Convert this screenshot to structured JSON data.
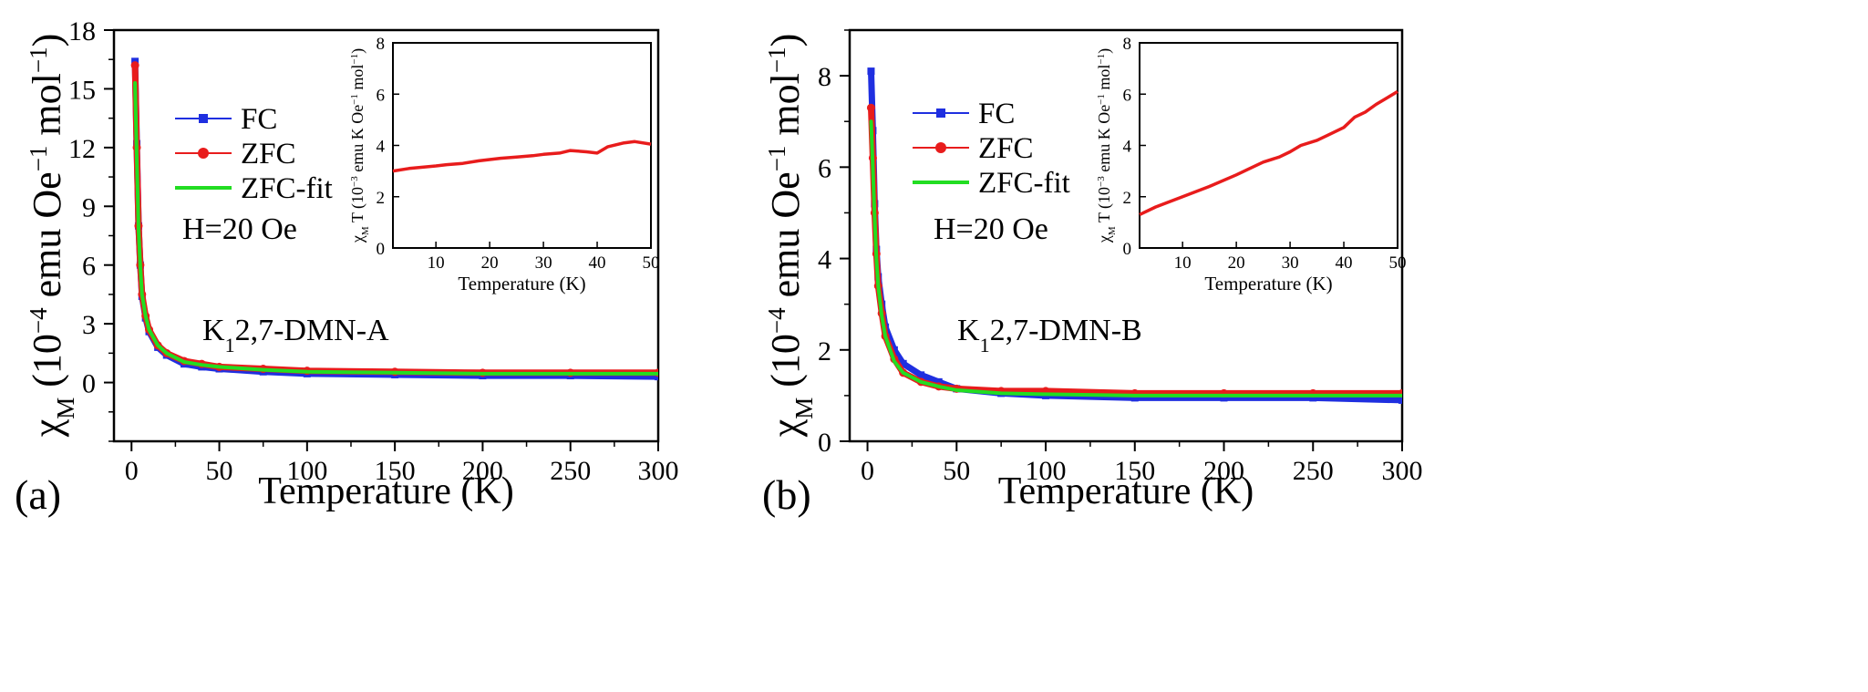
{
  "figure": {
    "panels": [
      "(a)",
      "(b)"
    ]
  },
  "chart_data": [
    {
      "panel_label": "(a)",
      "type": "line",
      "title": "",
      "xlabel": "Temperature (K)",
      "ylabel": "χ_M (10^-4 emu Oe^-1 mol^-1)",
      "ylabel_parts": {
        "chi": "χ",
        "sub": "M",
        "a": "(10",
        "exp1": "−4",
        "b": " emu Oe",
        "exp2": "−1",
        "c": " mol",
        "exp3": "−1",
        "d": ")"
      },
      "xlim": [
        -10,
        300
      ],
      "ylim": [
        -3,
        18
      ],
      "xticks": [
        0,
        50,
        100,
        150,
        200,
        250,
        300
      ],
      "yticks": [
        0,
        3,
        6,
        9,
        12,
        15,
        18
      ],
      "legend": {
        "position": "upper-left",
        "entries": [
          "FC",
          "ZFC",
          "ZFC-fit"
        ]
      },
      "annotations": {
        "field": "H=20 Oe",
        "sample_prefix": "K",
        "sample_sub": "1",
        "sample_suffix": "2,7-DMN-A"
      },
      "series": [
        {
          "name": "FC",
          "color": "#1f2fe0",
          "marker": "square",
          "x": [
            2,
            3,
            4,
            5,
            6,
            8,
            10,
            15,
            20,
            30,
            40,
            50,
            75,
            100,
            150,
            200,
            250,
            300
          ],
          "y": [
            16.4,
            12.2,
            8.0,
            6.0,
            4.4,
            3.3,
            2.6,
            1.8,
            1.4,
            0.95,
            0.8,
            0.7,
            0.55,
            0.45,
            0.4,
            0.35,
            0.35,
            0.3
          ]
        },
        {
          "name": "ZFC",
          "color": "#e81c1c",
          "marker": "circle",
          "x": [
            2,
            3,
            4,
            5,
            6,
            8,
            10,
            15,
            20,
            30,
            40,
            50,
            75,
            100,
            150,
            200,
            250,
            300
          ],
          "y": [
            16.2,
            12.0,
            8.0,
            6.0,
            4.5,
            3.4,
            2.7,
            1.9,
            1.5,
            1.1,
            0.95,
            0.8,
            0.7,
            0.6,
            0.55,
            0.5,
            0.5,
            0.5
          ]
        },
        {
          "name": "ZFC-fit",
          "color": "#22dd22",
          "marker": "none",
          "x": [
            2,
            3,
            4,
            5,
            6,
            8,
            10,
            15,
            20,
            30,
            40,
            50,
            75,
            100,
            150,
            200,
            250,
            300
          ],
          "y": [
            15.3,
            11.5,
            7.8,
            5.9,
            4.5,
            3.4,
            2.7,
            1.9,
            1.5,
            1.05,
            0.9,
            0.8,
            0.65,
            0.55,
            0.5,
            0.45,
            0.45,
            0.45
          ]
        }
      ],
      "inset": {
        "xlabel": "Temperature (K)",
        "ylabel": "χ_M T (10^-3 emu K Oe^-1 mol^-1)",
        "ylabel_parts": {
          "chi": "χ",
          "sub": "M",
          "a": "T (10",
          "exp1": "−3",
          "b": " emu K Oe",
          "exp2": "−1",
          "c": " mol",
          "exp3": "−1",
          "d": ")"
        },
        "xlim": [
          2,
          50
        ],
        "ylim": [
          0,
          8
        ],
        "xticks": [
          10,
          20,
          30,
          40,
          50
        ],
        "yticks": [
          0,
          2,
          4,
          6,
          8
        ],
        "series": [
          {
            "name": "",
            "color": "#e81c1c",
            "x": [
              2,
              5,
              10,
              12,
              15,
              18,
              20,
              22,
              25,
              28,
              30,
              33,
              35,
              38,
              40,
              42,
              45,
              47,
              50
            ],
            "y": [
              3.0,
              3.1,
              3.2,
              3.25,
              3.3,
              3.4,
              3.45,
              3.5,
              3.55,
              3.6,
              3.65,
              3.7,
              3.8,
              3.75,
              3.7,
              3.95,
              4.1,
              4.15,
              4.05
            ]
          }
        ]
      }
    },
    {
      "panel_label": "(b)",
      "type": "line",
      "title": "",
      "xlabel": "Temperature (K)",
      "ylabel": "χ_M (10^-4 emu Oe^-1 mol^-1)",
      "ylabel_parts": {
        "chi": "χ",
        "sub": "M",
        "a": "(10",
        "exp1": "−4",
        "b": " emu Oe",
        "exp2": "−1",
        "c": " mol",
        "exp3": "−1",
        "d": ")"
      },
      "xlim": [
        -10,
        300
      ],
      "ylim": [
        0,
        9
      ],
      "xticks": [
        0,
        50,
        100,
        150,
        200,
        250,
        300
      ],
      "yticks": [
        0,
        2,
        4,
        6,
        8
      ],
      "legend": {
        "position": "upper-left",
        "entries": [
          "FC",
          "ZFC",
          "ZFC-fit"
        ]
      },
      "annotations": {
        "field": "H=20 Oe",
        "sample_prefix": "K",
        "sample_sub": "1",
        "sample_suffix": "2,7-DMN-B"
      },
      "series": [
        {
          "name": "FC",
          "color": "#1f2fe0",
          "marker": "square",
          "x": [
            2,
            3,
            4,
            5,
            6,
            8,
            10,
            15,
            20,
            30,
            40,
            50,
            75,
            100,
            150,
            200,
            250,
            300
          ],
          "y": [
            8.1,
            6.8,
            5.2,
            4.2,
            3.6,
            3.0,
            2.5,
            2.0,
            1.7,
            1.45,
            1.3,
            1.15,
            1.05,
            1.0,
            0.95,
            0.95,
            0.95,
            0.9
          ]
        },
        {
          "name": "ZFC",
          "color": "#e81c1c",
          "marker": "circle",
          "x": [
            2,
            3,
            4,
            5,
            6,
            8,
            10,
            15,
            20,
            30,
            40,
            50,
            75,
            100,
            150,
            200,
            250,
            300
          ],
          "y": [
            7.3,
            6.2,
            5.0,
            4.1,
            3.4,
            2.8,
            2.3,
            1.8,
            1.5,
            1.3,
            1.2,
            1.15,
            1.1,
            1.1,
            1.05,
            1.05,
            1.05,
            1.05
          ]
        },
        {
          "name": "ZFC-fit",
          "color": "#22dd22",
          "marker": "none",
          "x": [
            2,
            3,
            4,
            5,
            6,
            8,
            10,
            15,
            20,
            30,
            40,
            50,
            75,
            100,
            150,
            200,
            250,
            300
          ],
          "y": [
            7.0,
            6.0,
            4.9,
            4.0,
            3.4,
            2.75,
            2.3,
            1.75,
            1.5,
            1.3,
            1.2,
            1.12,
            1.05,
            1.03,
            1.0,
            1.0,
            1.0,
            1.0
          ]
        }
      ],
      "inset": {
        "xlabel": "Temperature (K)",
        "ylabel": "χ_M T (10^-3 emu K Oe^-1 mol^-1)",
        "ylabel_parts": {
          "chi": "χ",
          "sub": "M",
          "a": "T (10",
          "exp1": "−3",
          "b": " emu K Oe",
          "exp2": "−1",
          "c": " mol",
          "exp3": "−1",
          "d": ")"
        },
        "xlim": [
          2,
          50
        ],
        "ylim": [
          0,
          8
        ],
        "xticks": [
          10,
          20,
          30,
          40,
          50
        ],
        "yticks": [
          0,
          2,
          4,
          6,
          8
        ],
        "series": [
          {
            "name": "",
            "color": "#e81c1c",
            "x": [
              2,
              5,
              10,
              15,
              20,
              22,
              25,
              28,
              30,
              32,
              35,
              37,
              40,
              42,
              44,
              46,
              48,
              50
            ],
            "y": [
              1.3,
              1.6,
              2.0,
              2.4,
              2.85,
              3.05,
              3.35,
              3.55,
              3.75,
              4.0,
              4.2,
              4.4,
              4.7,
              5.1,
              5.3,
              5.6,
              5.85,
              6.1
            ]
          }
        ]
      }
    }
  ]
}
